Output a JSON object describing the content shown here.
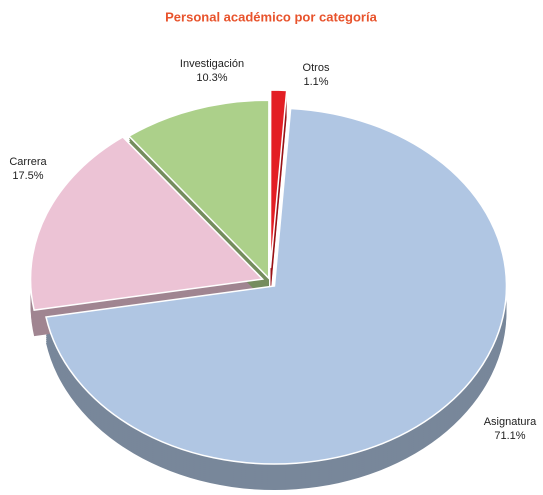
{
  "chart_data": {
    "type": "pie",
    "title": "Personal académico por categoría",
    "categories": [
      "Asignatura",
      "Carrera",
      "Investigación",
      "Otros"
    ],
    "values": [
      71.1,
      17.5,
      10.3,
      1.1
    ],
    "value_labels": [
      "71.1%",
      "17.5%",
      "10.3%",
      "1.1%"
    ],
    "colors": [
      "#b0c6e3",
      "#ecc3d5",
      "#acd08a",
      "#e31e24"
    ]
  }
}
